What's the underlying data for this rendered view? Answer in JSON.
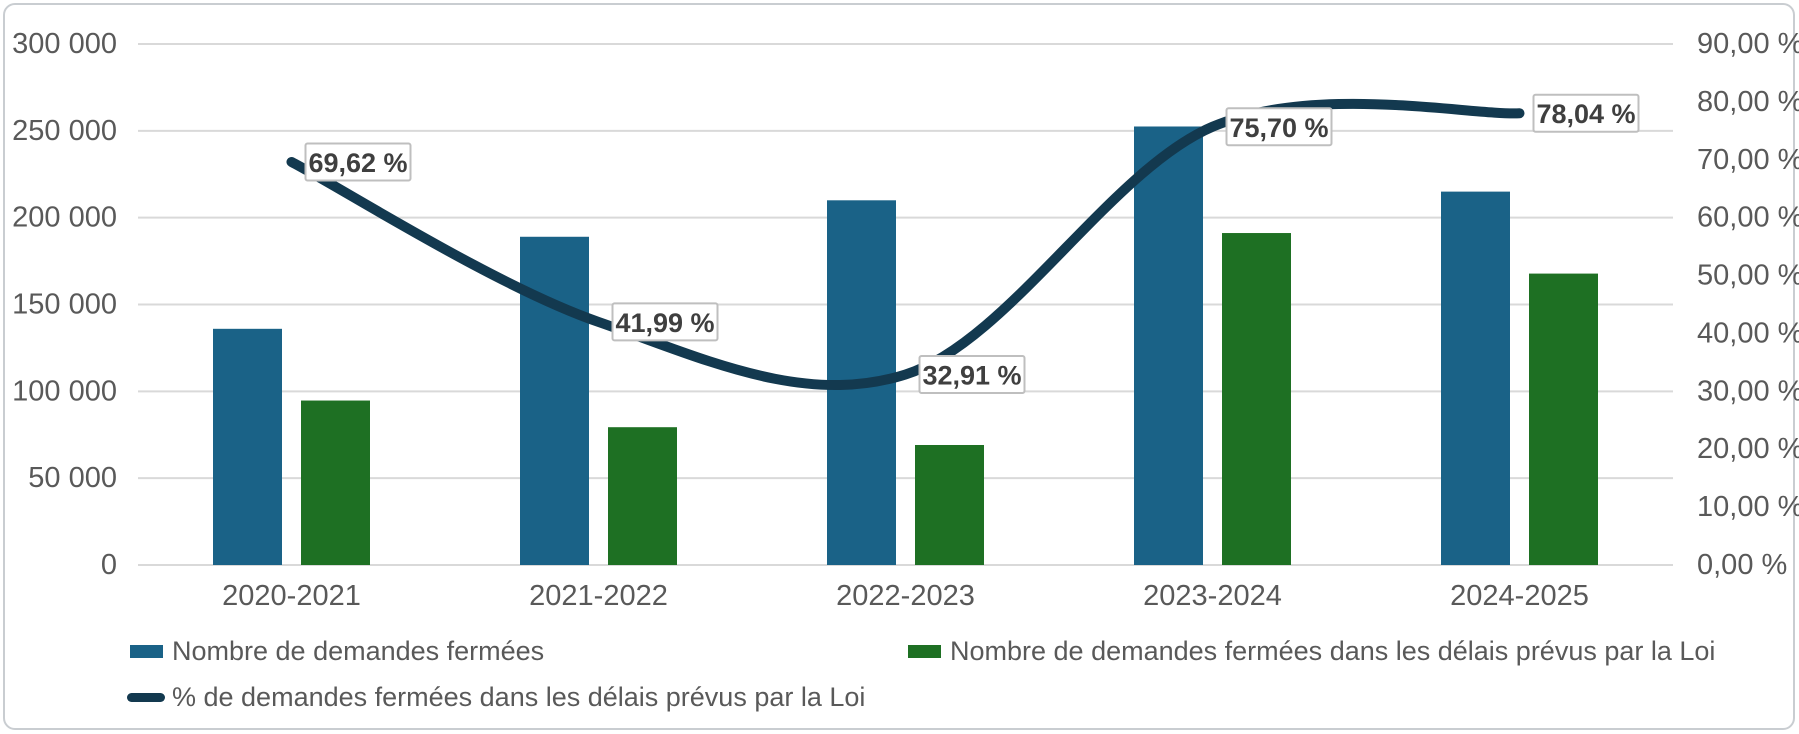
{
  "chart_data": {
    "type": "bar",
    "subtype": "grouped-bars-with-line-combo",
    "categories": [
      "2020-2021",
      "2021-2022",
      "2022-2023",
      "2023-2024",
      "2024-2025"
    ],
    "series": [
      {
        "name": "Nombre de demandes fermées",
        "type": "bar",
        "axis": "left",
        "color": "#1a6287",
        "values": [
          136000,
          189000,
          210000,
          252500,
          215000
        ]
      },
      {
        "name": "Nombre de demandes fermées dans les délais prévus par la Loi",
        "type": "bar",
        "axis": "left",
        "color": "#1e7023",
        "values": [
          94700,
          79350,
          69100,
          191150,
          167800
        ]
      },
      {
        "name": "% de demandes fermées dans les délais prévus par la Loi",
        "type": "line",
        "axis": "right",
        "color": "#13394f",
        "values": [
          69.62,
          41.99,
          32.91,
          75.7,
          78.04
        ],
        "point_labels": [
          "69,62 %",
          "41,99 %",
          "32,91 %",
          "75,70 %",
          "78,04 %"
        ]
      }
    ],
    "left_axis": {
      "min": 0,
      "max": 300000,
      "step": 50000,
      "tick_labels": [
        "0",
        "50 000",
        "100 000",
        "150 000",
        "200 000",
        "250 000",
        "300 000"
      ]
    },
    "right_axis": {
      "min": 0,
      "max": 90,
      "step": 10,
      "tick_labels": [
        "0,00 %",
        "10,00 %",
        "20,00 %",
        "30,00 %",
        "40,00 %",
        "50,00 %",
        "60,00 %",
        "70,00 %",
        "80,00 %",
        "90,00 %"
      ]
    },
    "title": "",
    "xlabel": "",
    "ylabel": "",
    "grid": true,
    "legend_position": "bottom"
  },
  "colors": {
    "gridline": "#d9d9d9",
    "axis_text": "#595959",
    "data_label_text": "#3f3f3f",
    "data_label_border": "#bfbfbf",
    "frame_border": "#c9cdd1",
    "background": "#ffffff"
  }
}
